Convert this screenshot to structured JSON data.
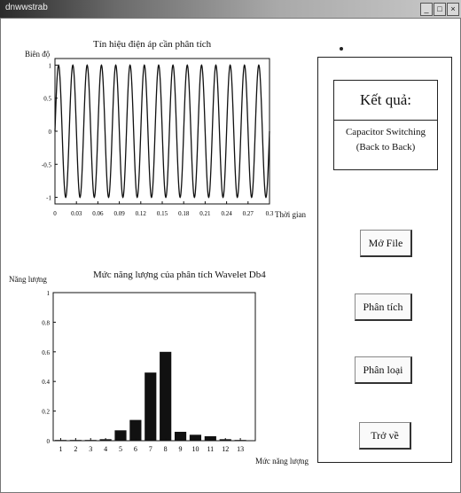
{
  "window": {
    "title": "dnwwstrab",
    "controls": [
      "_",
      "□",
      "×"
    ]
  },
  "voltage_plot": {
    "title": "Tín hiệu điện áp cần phân tích",
    "ylabel": "Biên độ",
    "xlabel": "Thời gian"
  },
  "energy_plot": {
    "title": "Mức năng lượng của phân tích Wavelet Db4",
    "ylabel": "Năng lượng",
    "xlabel": "Mức năng lượng"
  },
  "result": {
    "title": "Kết quả:",
    "value_line1": "Capacitor Switching",
    "value_line2": "(Back to Back)"
  },
  "buttons": {
    "open_file": "Mở File",
    "analyze": "Phân tích",
    "classify": "Phân loại",
    "back": "Trở về"
  },
  "chart_data": [
    {
      "type": "line",
      "title": "Tín hiệu điện áp cần phân tích",
      "ylabel": "Biên độ",
      "xlabel": "Thời gian",
      "xlim": [
        0,
        0.3
      ],
      "ylim": [
        -1.1,
        1.1
      ],
      "xticks": [
        "0",
        "0.03",
        "0.06",
        "0.09",
        "0.12",
        "0.15",
        "0.18",
        "0.21",
        "0.24",
        "0.27",
        "0.3"
      ],
      "yticks": [
        "1",
        "0.5",
        "0",
        "-0.5",
        "-1"
      ],
      "frequency_hz": 50,
      "amplitude": 1,
      "grid": false
    },
    {
      "type": "bar",
      "title": "Mức năng lượng của phân tích Wavelet Db4",
      "ylabel": "Năng lượng",
      "xlabel": "Mức năng lượng",
      "categories": [
        "1",
        "2",
        "3",
        "4",
        "5",
        "6",
        "7",
        "8",
        "9",
        "10",
        "11",
        "12",
        "13"
      ],
      "values": [
        0.0,
        0.0,
        0.0,
        0.01,
        0.07,
        0.14,
        0.46,
        0.6,
        0.06,
        0.04,
        0.03,
        0.01,
        0.0
      ],
      "ylim": [
        0,
        1
      ],
      "yticks": [
        "1",
        "0.8",
        "0.6",
        "0.4",
        "0.2",
        "0"
      ],
      "grid": false
    }
  ]
}
